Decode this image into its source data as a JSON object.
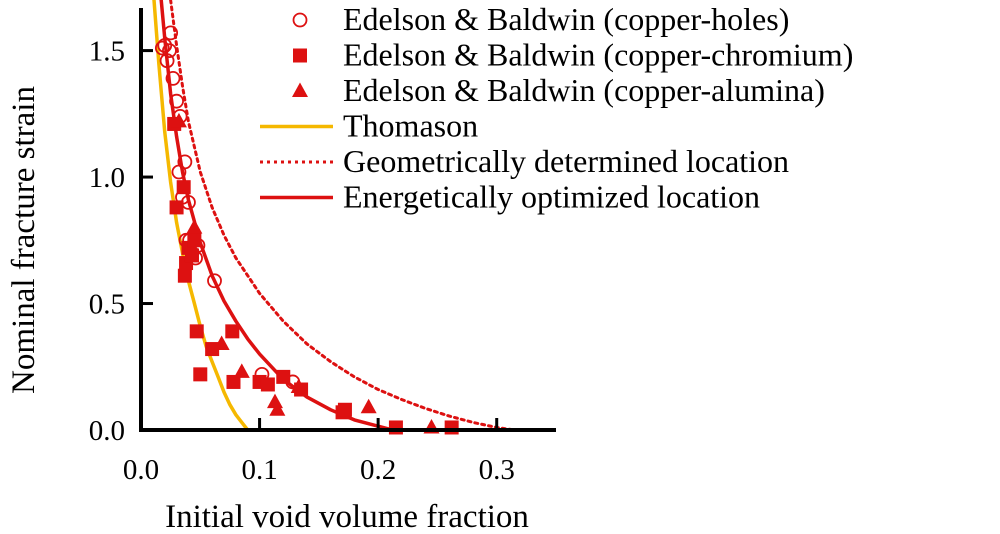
{
  "chart_data": {
    "type": "scatter",
    "xlabel": "Initial void volume fraction",
    "ylabel": "Nominal fracture strain",
    "xlim": [
      0.0,
      0.35
    ],
    "ylim": [
      0.0,
      1.7
    ],
    "x_ticks": [
      "0.0",
      "0.1",
      "0.2",
      "0.3"
    ],
    "x_tick_values": [
      0.0,
      0.1,
      0.2,
      0.3
    ],
    "y_ticks": [
      "0.0",
      "0.5",
      "1.0",
      "1.5"
    ],
    "y_tick_values": [
      0.0,
      0.5,
      1.0,
      1.5
    ],
    "grid": false,
    "legend_position": "top-right",
    "series": [
      {
        "name": "Edelson & Baldwin (copper-holes)",
        "kind": "scatter",
        "marker": "open-circle",
        "color": "#dd1111",
        "points": [
          [
            0.018,
            1.51
          ],
          [
            0.02,
            1.52
          ],
          [
            0.022,
            1.46
          ],
          [
            0.024,
            1.5
          ],
          [
            0.025,
            1.57
          ],
          [
            0.027,
            1.39
          ],
          [
            0.03,
            1.3
          ],
          [
            0.032,
            1.02
          ],
          [
            0.033,
            1.24
          ],
          [
            0.035,
            0.92
          ],
          [
            0.037,
            1.06
          ],
          [
            0.038,
            0.75
          ],
          [
            0.04,
            0.9
          ],
          [
            0.041,
            0.75
          ],
          [
            0.043,
            0.7
          ],
          [
            0.046,
            0.68
          ],
          [
            0.048,
            0.73
          ],
          [
            0.062,
            0.59
          ],
          [
            0.102,
            0.22
          ],
          [
            0.128,
            0.19
          ]
        ]
      },
      {
        "name": "Edelson & Baldwin (copper-chromium)",
        "kind": "scatter",
        "marker": "filled-square",
        "color": "#dd1111",
        "points": [
          [
            0.028,
            1.21
          ],
          [
            0.03,
            0.88
          ],
          [
            0.036,
            0.96
          ],
          [
            0.037,
            0.61
          ],
          [
            0.038,
            0.66
          ],
          [
            0.04,
            0.72
          ],
          [
            0.043,
            0.69
          ],
          [
            0.045,
            0.75
          ],
          [
            0.047,
            0.39
          ],
          [
            0.05,
            0.22
          ],
          [
            0.06,
            0.32
          ],
          [
            0.077,
            0.39
          ],
          [
            0.078,
            0.19
          ],
          [
            0.1,
            0.19
          ],
          [
            0.107,
            0.18
          ],
          [
            0.12,
            0.21
          ],
          [
            0.135,
            0.16
          ],
          [
            0.17,
            0.07
          ],
          [
            0.172,
            0.08
          ],
          [
            0.215,
            0.01
          ],
          [
            0.262,
            0.01
          ]
        ]
      },
      {
        "name": "Edelson & Baldwin (copper-alumina)",
        "kind": "scatter",
        "marker": "filled-triangle",
        "color": "#dd1111",
        "points": [
          [
            0.032,
            1.22
          ],
          [
            0.045,
            0.8
          ],
          [
            0.068,
            0.34
          ],
          [
            0.085,
            0.23
          ],
          [
            0.113,
            0.11
          ],
          [
            0.115,
            0.08
          ],
          [
            0.133,
            0.17
          ],
          [
            0.192,
            0.09
          ],
          [
            0.245,
            0.01
          ]
        ]
      },
      {
        "name": "Thomason",
        "kind": "line",
        "style": "solid",
        "color": "#f5b800",
        "points": [
          [
            0.011,
            1.7
          ],
          [
            0.015,
            1.45
          ],
          [
            0.02,
            1.18
          ],
          [
            0.025,
            0.98
          ],
          [
            0.03,
            0.82
          ],
          [
            0.035,
            0.7
          ],
          [
            0.04,
            0.59
          ],
          [
            0.045,
            0.5
          ],
          [
            0.05,
            0.41
          ],
          [
            0.055,
            0.33
          ],
          [
            0.06,
            0.27
          ],
          [
            0.065,
            0.21
          ],
          [
            0.07,
            0.15
          ],
          [
            0.075,
            0.1
          ],
          [
            0.08,
            0.06
          ],
          [
            0.085,
            0.03
          ],
          [
            0.09,
            0.0
          ]
        ]
      },
      {
        "name": "Geometrically determined location",
        "kind": "line",
        "style": "dotted",
        "color": "#dd1111",
        "points": [
          [
            0.025,
            1.7
          ],
          [
            0.03,
            1.52
          ],
          [
            0.035,
            1.36
          ],
          [
            0.04,
            1.22
          ],
          [
            0.05,
            1.02
          ],
          [
            0.06,
            0.88
          ],
          [
            0.07,
            0.77
          ],
          [
            0.08,
            0.68
          ],
          [
            0.1,
            0.54
          ],
          [
            0.12,
            0.43
          ],
          [
            0.14,
            0.34
          ],
          [
            0.16,
            0.27
          ],
          [
            0.18,
            0.21
          ],
          [
            0.2,
            0.16
          ],
          [
            0.22,
            0.12
          ],
          [
            0.24,
            0.085
          ],
          [
            0.26,
            0.055
          ],
          [
            0.28,
            0.03
          ],
          [
            0.3,
            0.01
          ],
          [
            0.315,
            0.0
          ]
        ]
      },
      {
        "name": "Energetically optimized location",
        "kind": "line",
        "style": "solid",
        "color": "#dd1111",
        "points": [
          [
            0.017,
            1.7
          ],
          [
            0.02,
            1.55
          ],
          [
            0.025,
            1.33
          ],
          [
            0.03,
            1.16
          ],
          [
            0.035,
            1.02
          ],
          [
            0.04,
            0.91
          ],
          [
            0.05,
            0.74
          ],
          [
            0.06,
            0.61
          ],
          [
            0.07,
            0.51
          ],
          [
            0.08,
            0.43
          ],
          [
            0.09,
            0.36
          ],
          [
            0.1,
            0.3
          ],
          [
            0.12,
            0.2
          ],
          [
            0.14,
            0.13
          ],
          [
            0.16,
            0.08
          ],
          [
            0.18,
            0.04
          ],
          [
            0.2,
            0.015
          ],
          [
            0.212,
            0.0
          ]
        ]
      }
    ]
  }
}
